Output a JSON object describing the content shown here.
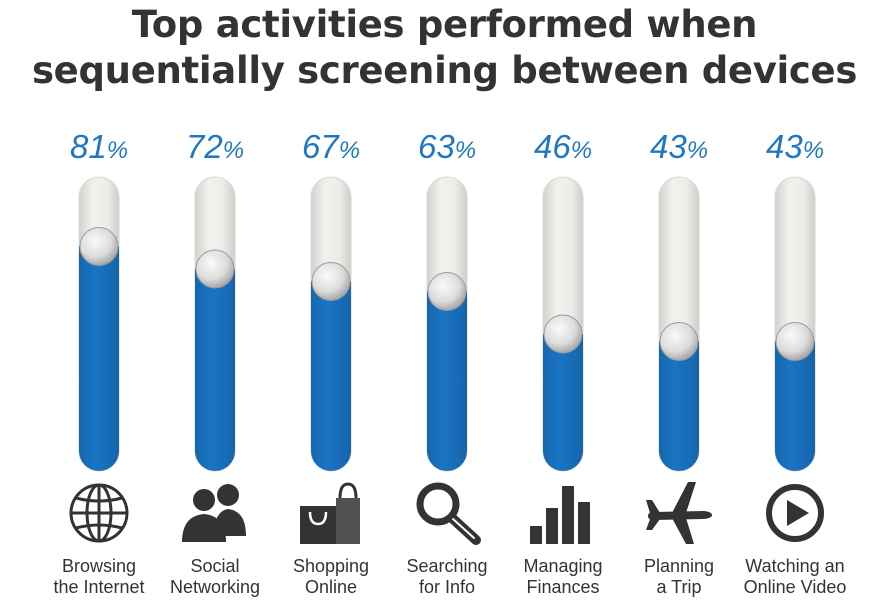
{
  "title": {
    "line1": "Top activities performed when",
    "line2": "sequentially screening between devices"
  },
  "colors": {
    "fill": "#1a73c1",
    "track": "#ebe9e5",
    "percent_text": "#1f77c4",
    "text": "#333333"
  },
  "chart_data": {
    "type": "bar",
    "title": "Top activities performed when sequentially screening between devices",
    "categories": [
      "Browsing the Internet",
      "Social Networking",
      "Shopping Online",
      "Searching for Info",
      "Managing Finances",
      "Planning a Trip",
      "Watching an Online Video"
    ],
    "values": [
      81,
      72,
      67,
      63,
      46,
      43,
      43
    ],
    "value_suffix": "%",
    "ylim": [
      0,
      100
    ],
    "grid": false,
    "legend": "none"
  },
  "items": [
    {
      "pct": "81",
      "sym": "%",
      "label_line1": "Browsing",
      "label_line2": "the Internet",
      "icon": "globe-icon"
    },
    {
      "pct": "72",
      "sym": "%",
      "label_line1": "Social",
      "label_line2": "Networking",
      "icon": "people-icon"
    },
    {
      "pct": "67",
      "sym": "%",
      "label_line1": "Shopping",
      "label_line2": "Online",
      "icon": "shopping-bag-icon"
    },
    {
      "pct": "63",
      "sym": "%",
      "label_line1": "Searching",
      "label_line2": "for Info",
      "icon": "magnifier-icon"
    },
    {
      "pct": "46",
      "sym": "%",
      "label_line1": "Managing",
      "label_line2": "Finances",
      "icon": "bar-chart-icon"
    },
    {
      "pct": "43",
      "sym": "%",
      "label_line1": "Planning",
      "label_line2": "a Trip",
      "icon": "airplane-icon"
    },
    {
      "pct": "43",
      "sym": "%",
      "label_line1": "Watching an",
      "label_line2": "Online Video",
      "icon": "play-icon"
    }
  ]
}
